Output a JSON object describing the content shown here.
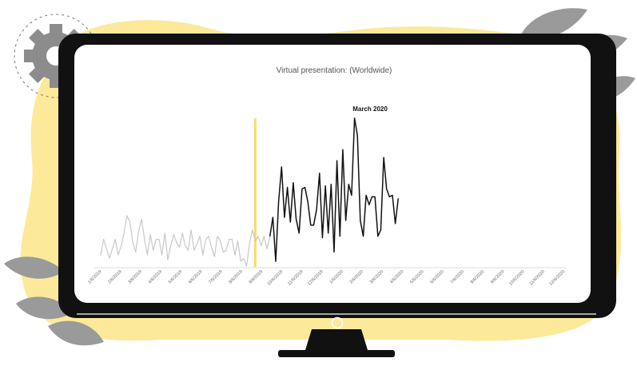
{
  "colors": {
    "blob": "#fce99a",
    "frame": "#111111",
    "screen": "#ffffff",
    "gear": "#8c8c8c",
    "leaf": "#9a9a9a",
    "series_before": "#c8c8c8",
    "series_after": "#111111",
    "marker": "#f7dc6f",
    "axis": "#dddddd"
  },
  "icons": {
    "gear": "gear-icon",
    "power": "power-button-icon",
    "leaf": "leaf-icon"
  },
  "chart_data": {
    "type": "line",
    "title": "Virtual presentation: (Worldwide)",
    "xlabel": "",
    "ylabel": "",
    "ylim": [
      0,
      100
    ],
    "grid": false,
    "annotation": {
      "label": "March 2020",
      "x_index": 53
    },
    "x_tick_labels": [
      "1/6/2019",
      "2/6/2019",
      "3/6/2019",
      "4/6/2019",
      "5/6/2019",
      "6/6/2019",
      "7/6/2019",
      "8/6/2019",
      "9/6/2019",
      "10/6/2019",
      "11/6/2019",
      "12/6/2019",
      "1/6/2020",
      "2/6/2020",
      "3/6/2020",
      "4/6/2020",
      "5/6/2020",
      "6/6/2020",
      "7/6/2020",
      "8/6/2020",
      "9/6/2020",
      "10/6/2020",
      "11/6/2020",
      "12/6/2020"
    ],
    "series": [
      {
        "values": [
          8,
          18,
          12,
          6,
          12,
          18,
          8,
          14,
          22,
          33,
          29,
          16,
          10,
          23,
          31,
          18,
          8,
          21,
          11,
          18,
          18,
          8,
          22,
          5,
          14,
          21,
          16,
          13,
          22,
          14,
          11,
          24,
          11,
          15,
          20,
          8,
          18,
          20,
          13,
          7,
          20,
          17,
          10,
          11,
          18,
          18,
          8,
          17,
          4,
          6,
          1,
          15,
          24,
          17,
          20,
          14,
          20,
          12,
          20
        ]
      },
      {
        "values": [
          20,
          32,
          4,
          42,
          64,
          32,
          51,
          29,
          54,
          31,
          22,
          50,
          51,
          42,
          27,
          27,
          37,
          60,
          19,
          52,
          22,
          53,
          10,
          68,
          20,
          75,
          30,
          53,
          46,
          95,
          84,
          30,
          20,
          46,
          40,
          45,
          45,
          20,
          24,
          70,
          50,
          45,
          46,
          28,
          44
        ]
      }
    ]
  }
}
